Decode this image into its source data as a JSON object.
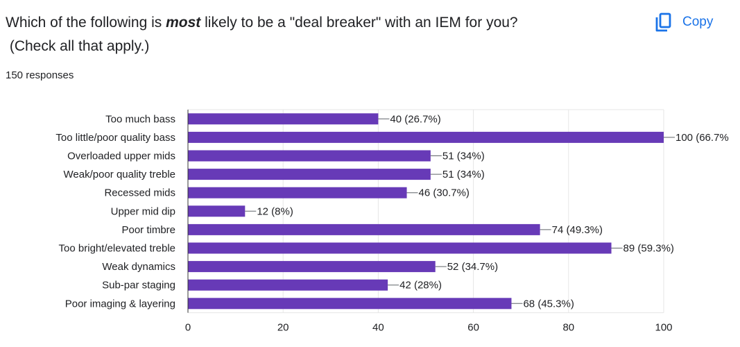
{
  "question": {
    "line1_pre": "Which of the following is ",
    "line1_emph": "most",
    "line1_post": " likely to be a \"deal breaker\" with an IEM for you?",
    "line2": " (Check all that apply.)"
  },
  "copy_button": {
    "label": "Copy",
    "icon": "copy-icon"
  },
  "responses_text": "150 responses",
  "colors": {
    "bar": "#673ab7",
    "grid": "#e6e6e6",
    "text": "#202124",
    "accent": "#1a73e8"
  },
  "chart_data": {
    "type": "bar",
    "orientation": "horizontal",
    "categories": [
      "Too much bass",
      "Too little/poor quality bass",
      "Overloaded upper mids",
      "Weak/poor quality treble",
      "Recessed mids",
      "Upper mid dip",
      "Poor timbre",
      "Too bright/elevated treble",
      "Weak dynamics",
      "Sub-par staging",
      "Poor imaging & layering"
    ],
    "values": [
      40,
      100,
      51,
      51,
      46,
      12,
      74,
      89,
      52,
      42,
      68
    ],
    "data_labels": [
      "40 (26.7%)",
      "100 (66.7%",
      "51 (34%)",
      "51 (34%)",
      "46 (30.7%)",
      "12 (8%)",
      "74 (49.3%)",
      "89 (59.3%)",
      "52 (34.7%)",
      "42 (28%)",
      "68 (45.3%)"
    ],
    "xlim": [
      0,
      100
    ],
    "xticks": [
      0,
      20,
      40,
      60,
      80,
      100
    ],
    "grid": true
  }
}
